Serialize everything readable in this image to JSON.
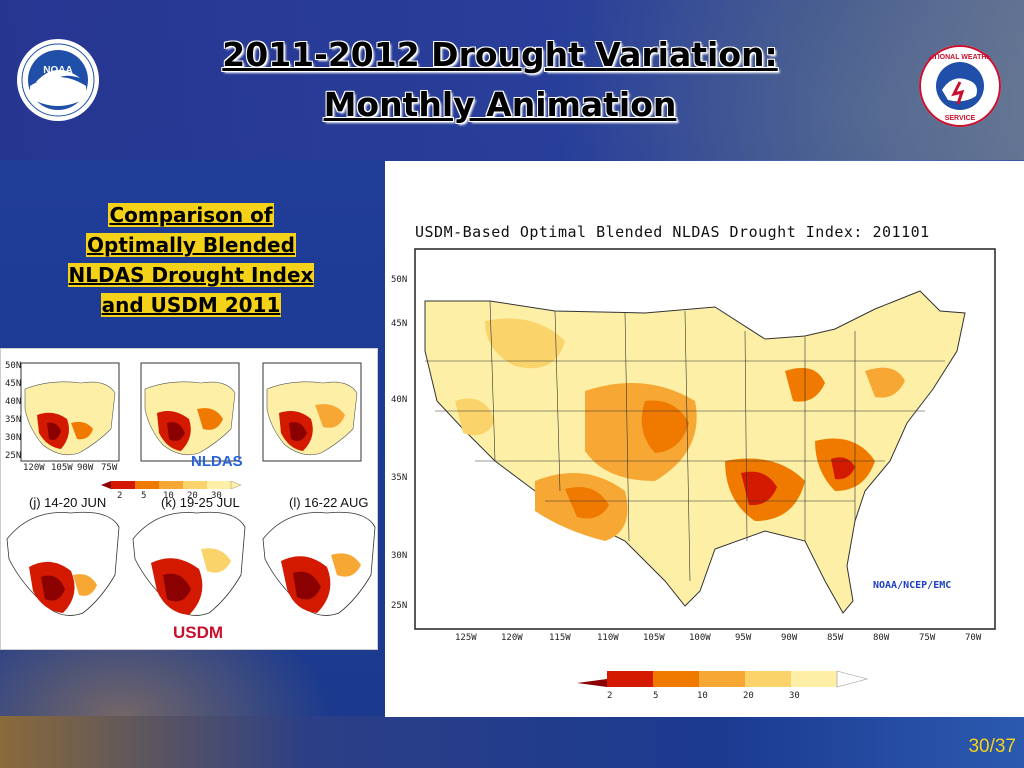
{
  "slide": {
    "title_line1": "2011-2012 Drought Variation:",
    "title_line2": "Monthly Animation",
    "subtitle_lines": [
      "Comparison of",
      "Optimally Blended",
      "NLDAS Drought Index",
      "and USDM 2011"
    ],
    "page_number": "30/37",
    "logos": [
      "noaa-logo",
      "nws-logo"
    ]
  },
  "comparison_figure": {
    "nldas_label": "NLDAS",
    "usdm_label": "USDM",
    "periods": [
      "(j) 14-20 JUN",
      "(k) 19-25 JUL",
      "(l) 16-22 AUG"
    ],
    "lat_ticks": [
      "50N",
      "45N",
      "40N",
      "35N",
      "30N",
      "25N"
    ],
    "lon_ticks": [
      "120W",
      "105W",
      "90W",
      "75W"
    ],
    "colorbar_ticks": [
      "2",
      "5",
      "10",
      "20",
      "30"
    ]
  },
  "main_map": {
    "title": "USDM-Based Optimal Blended NLDAS Drought Index: 201101",
    "credit": "NOAA/NCEP/EMC",
    "lat_ticks": [
      "50N",
      "45N",
      "40N",
      "35N",
      "30N",
      "25N"
    ],
    "lon_ticks": [
      "125W",
      "120W",
      "115W",
      "110W",
      "105W",
      "100W",
      "95W",
      "90W",
      "85W",
      "80W",
      "75W",
      "70W"
    ],
    "colorbar_ticks": [
      "2",
      "5",
      "10",
      "20",
      "30"
    ],
    "colors": [
      "#8b0000",
      "#d31a00",
      "#f07a00",
      "#f7a834",
      "#fbd36b",
      "#fdf0a6"
    ]
  }
}
